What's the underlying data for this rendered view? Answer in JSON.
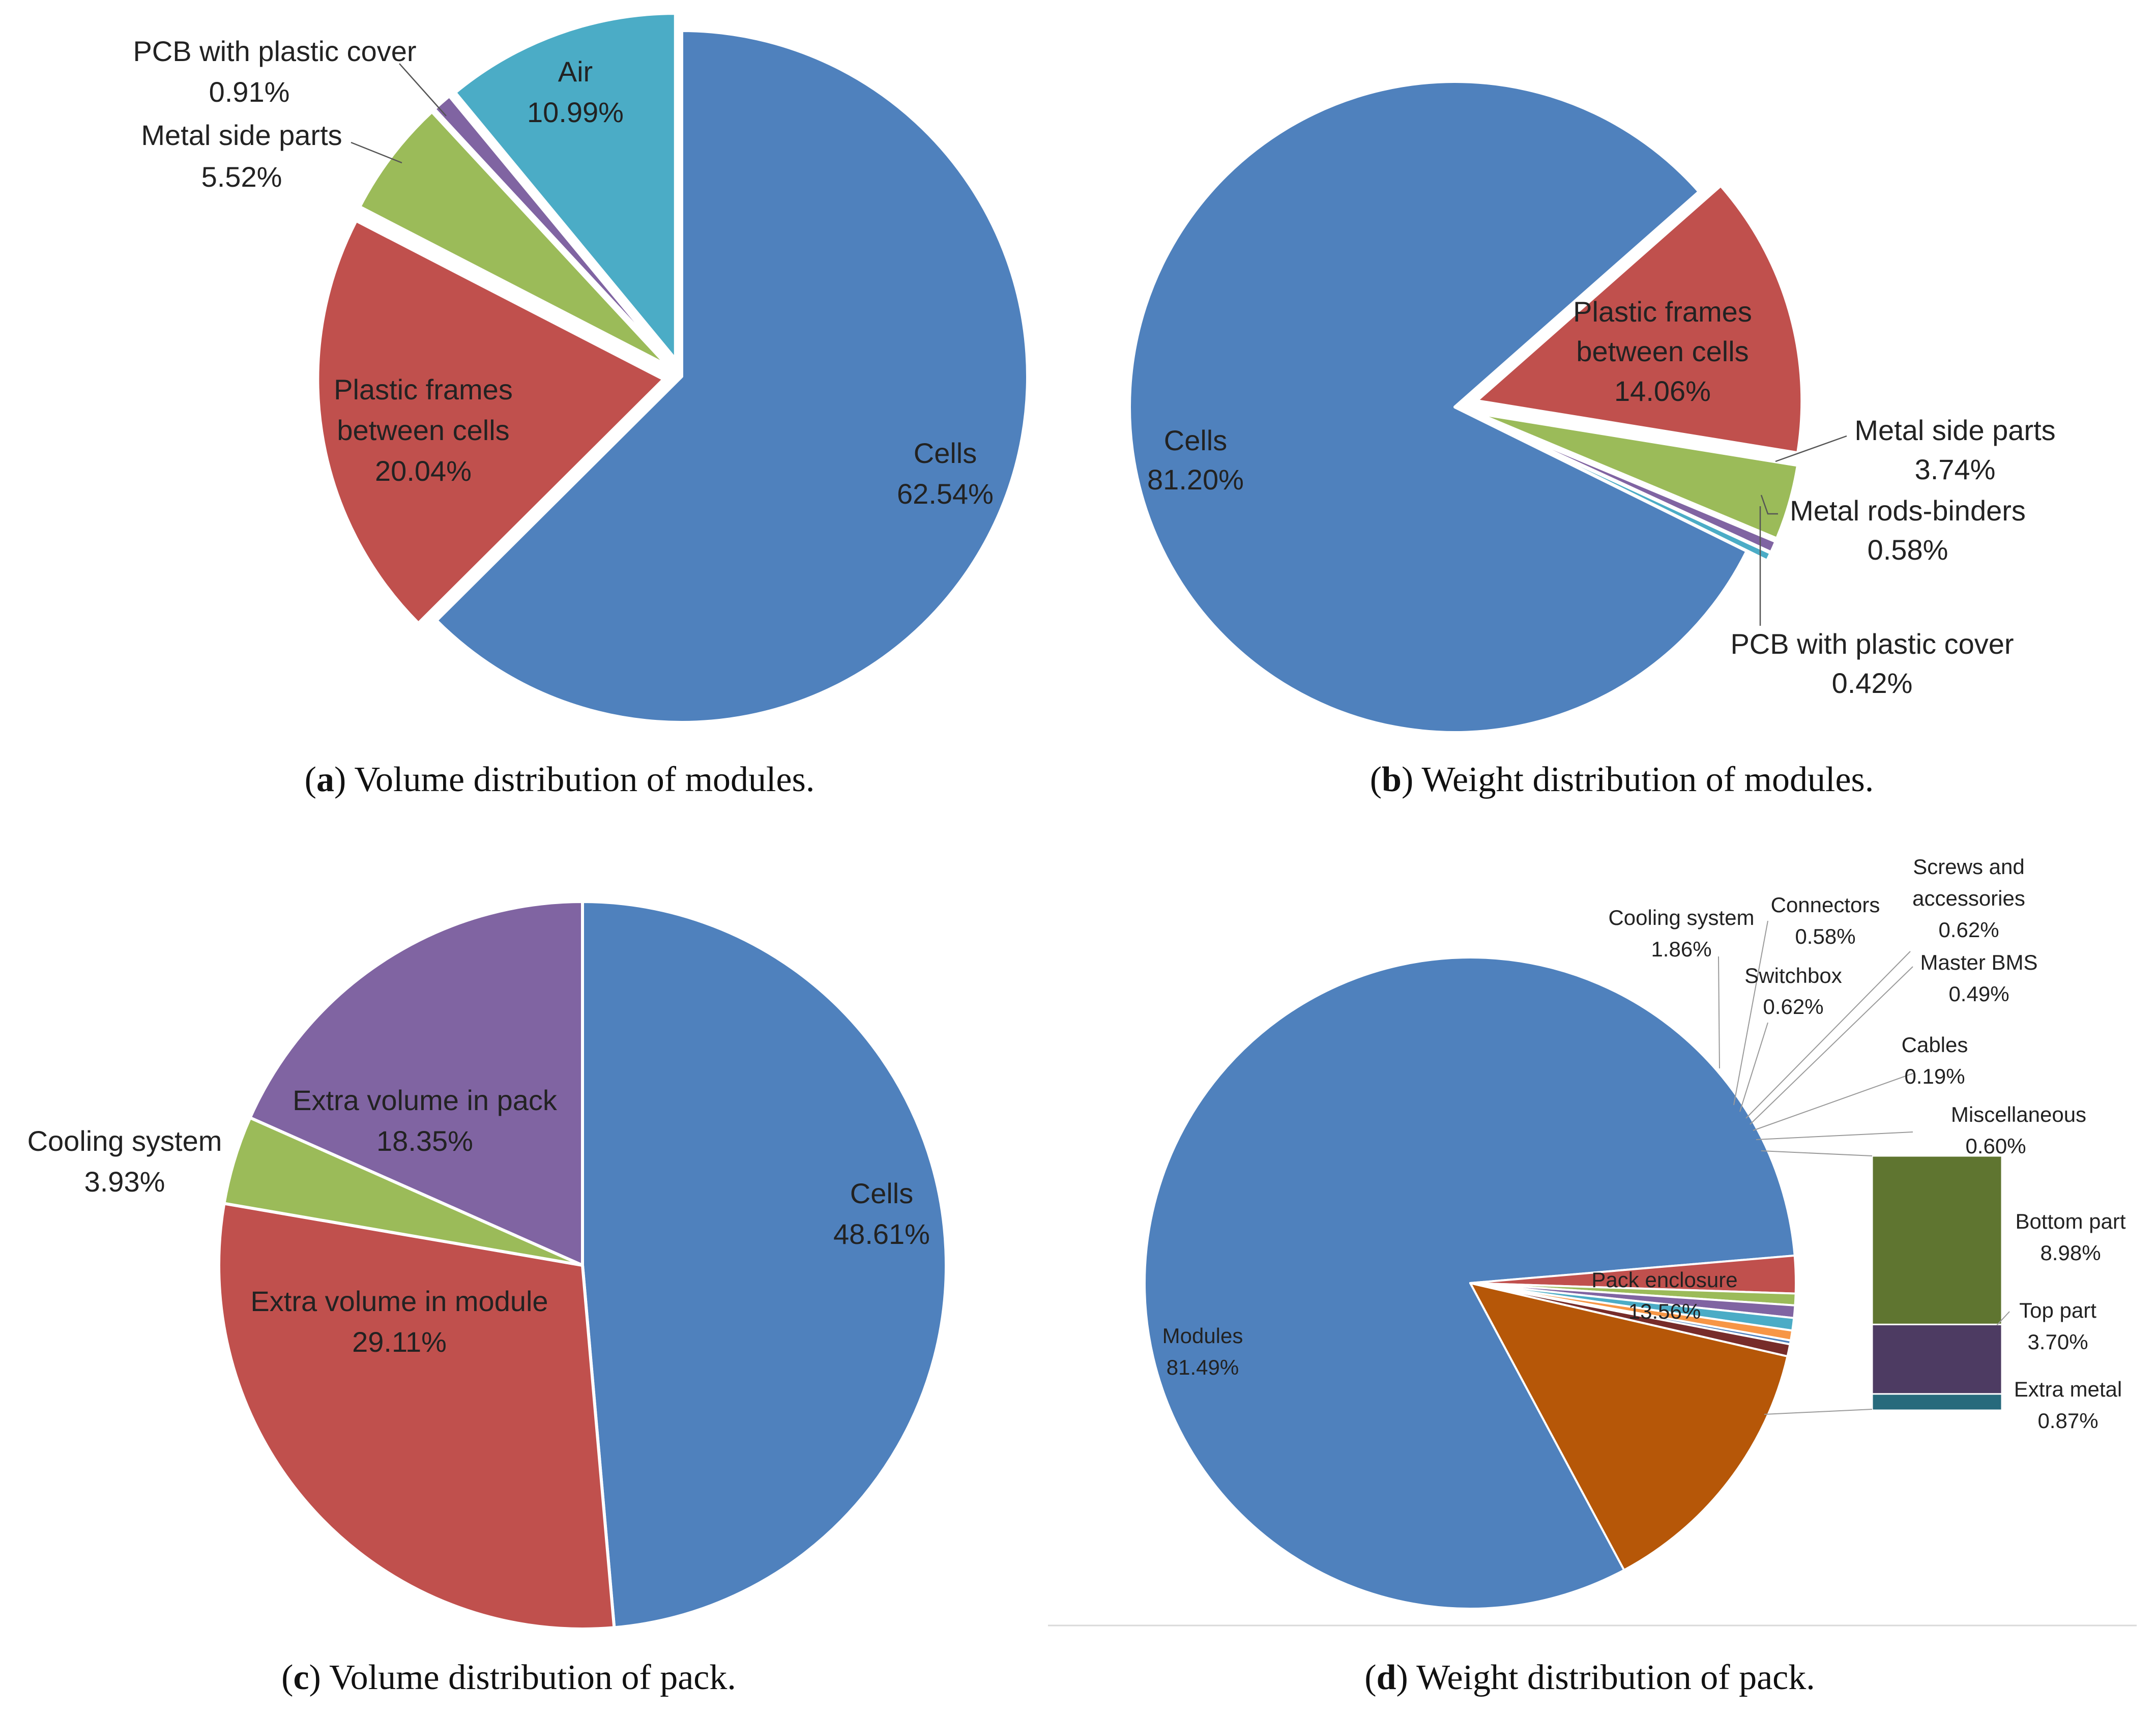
{
  "colors": {
    "blue": "#4f81bd",
    "red": "#c0504d",
    "green": "#9bbb59",
    "purple": "#8064a2",
    "aqua": "#4bacc6",
    "orange": "#f79646",
    "darkred": "#772c2a",
    "burnt": "#b65708",
    "olive": "#5f7530",
    "plum": "#4d3b62",
    "teal": "#276a7c"
  },
  "chart_data": [
    {
      "id": "a",
      "type": "pie",
      "title": "Volume distribution of modules.",
      "caption_letter": "a",
      "slices": [
        {
          "name": "Cells",
          "value": 62.54,
          "label": "62.54%",
          "color": "#4f81bd"
        },
        {
          "name": "Plastic frames between cells",
          "name_lines": [
            "Plastic frames",
            "between cells"
          ],
          "value": 20.04,
          "label": "20.04%",
          "color": "#c0504d"
        },
        {
          "name": "Metal side parts",
          "value": 5.52,
          "label": "5.52%",
          "color": "#9bbb59"
        },
        {
          "name": "PCB with plastic cover",
          "value": 0.91,
          "label": "0.91%",
          "color": "#8064a2"
        },
        {
          "name": "Air",
          "value": 10.99,
          "label": "10.99%",
          "color": "#4bacc6"
        }
      ]
    },
    {
      "id": "b",
      "type": "pie",
      "title": "Weight distribution of modules.",
      "caption_letter": "b",
      "slices": [
        {
          "name": "Plastic frames between cells",
          "name_lines": [
            "Plastic frames",
            "between cells"
          ],
          "value": 14.06,
          "label": "14.06%",
          "color": "#c0504d"
        },
        {
          "name": "Metal side parts",
          "value": 3.74,
          "label": "3.74%",
          "color": "#9bbb59"
        },
        {
          "name": "Metal rods-binders",
          "value": 0.58,
          "label": "0.58%",
          "color": "#8064a2"
        },
        {
          "name": "PCB with plastic cover",
          "value": 0.42,
          "label": "0.42%",
          "color": "#4bacc6"
        },
        {
          "name": "Cells",
          "value": 81.2,
          "label": "81.20%",
          "color": "#4f81bd"
        }
      ]
    },
    {
      "id": "c",
      "type": "pie",
      "title": "Volume distribution of pack.",
      "caption_letter": "c",
      "slices": [
        {
          "name": "Cells",
          "value": 48.61,
          "label": "48.61%",
          "color": "#4f81bd"
        },
        {
          "name": "Extra volume in module",
          "value": 29.11,
          "label": "29.11%",
          "color": "#c0504d"
        },
        {
          "name": "Cooling system",
          "value": 3.93,
          "label": "3.93%",
          "color": "#9bbb59"
        },
        {
          "name": "Extra volume in pack",
          "value": 18.35,
          "label": "18.35%",
          "color": "#8064a2"
        }
      ]
    },
    {
      "id": "d",
      "type": "pie",
      "title": "Weight distribution of pack.",
      "caption_letter": "d",
      "slices": [
        {
          "name": "Pack enclosure",
          "value": 13.56,
          "label": "13.56%",
          "color": "#b65708"
        },
        {
          "name": "Modules",
          "value": 81.49,
          "label": "81.49%",
          "color": "#4f81bd"
        },
        {
          "name": "Cooling system",
          "value": 1.86,
          "label": "1.86%",
          "color": "#c0504d"
        },
        {
          "name": "Connectors",
          "value": 0.58,
          "label": "0.58%",
          "color": "#9bbb59"
        },
        {
          "name": "Switchbox",
          "value": 0.62,
          "label": "0.62%",
          "color": "#8064a2"
        },
        {
          "name": "Screws and accessories",
          "name_lines": [
            "Screws and",
            "accessories"
          ],
          "value": 0.62,
          "label": "0.62%",
          "color": "#4bacc6"
        },
        {
          "name": "Master BMS",
          "value": 0.49,
          "label": "0.49%",
          "color": "#f79646"
        },
        {
          "name": "Cables",
          "value": 0.19,
          "label": "0.19%",
          "color": "#4f81bd"
        },
        {
          "name": "Miscellaneous",
          "value": 0.6,
          "label": "0.60%",
          "color": "#772c2a"
        }
      ],
      "breakdown": {
        "of": "Pack enclosure",
        "items": [
          {
            "name": "Bottom part",
            "value": 8.98,
            "label": "8.98%",
            "color": "#5f7530"
          },
          {
            "name": "Top part",
            "value": 3.7,
            "label": "3.70%",
            "color": "#4d3b62"
          },
          {
            "name": "Extra metal",
            "value": 0.87,
            "label": "0.87%",
            "color": "#276a7c"
          }
        ]
      }
    }
  ]
}
